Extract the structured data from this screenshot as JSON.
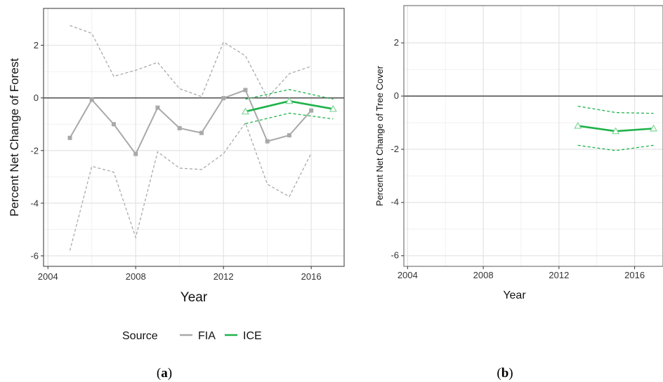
{
  "chart_data": [
    {
      "type": "line",
      "panel": "(a)",
      "xlabel": "Year",
      "ylabel": "Percent Net Change of Forest",
      "xlim": [
        2003.8,
        2017.5
      ],
      "ylim": [
        -6.4,
        3.4
      ],
      "x_ticks": [
        2004,
        2008,
        2012,
        2016
      ],
      "y_ticks": [
        -6,
        -4,
        -2,
        0,
        2
      ],
      "grid": true,
      "reference_line": 0,
      "series": [
        {
          "name": "FIA",
          "color": "#a9a9a9",
          "x": [
            2005,
            2006,
            2007,
            2008,
            2009,
            2010,
            2011,
            2012,
            2013,
            2014,
            2015,
            2016
          ],
          "values": [
            -1.52,
            -0.07,
            -1.0,
            -2.13,
            -0.37,
            -1.15,
            -1.33,
            -0.01,
            0.3,
            -1.65,
            -1.42,
            -0.48
          ],
          "upper": [
            2.75,
            2.45,
            0.82,
            1.05,
            1.35,
            0.35,
            0.05,
            2.12,
            1.6,
            0.0,
            0.92,
            1.2
          ],
          "lower": [
            -5.8,
            -2.6,
            -2.82,
            -5.3,
            -2.05,
            -2.67,
            -2.72,
            -2.12,
            -0.95,
            -3.28,
            -3.75,
            -2.1
          ]
        },
        {
          "name": "ICE",
          "color": "#1fb24a",
          "x": [
            2013,
            2015,
            2017
          ],
          "values": [
            -0.52,
            -0.12,
            -0.42
          ],
          "upper": [
            -0.05,
            0.32,
            -0.05
          ],
          "lower": [
            -0.98,
            -0.58,
            -0.8
          ]
        }
      ]
    },
    {
      "type": "line",
      "panel": "(b)",
      "xlabel": "Year",
      "ylabel": "Percent Net Change of Tree Cover",
      "xlim": [
        2003.8,
        2017.5
      ],
      "ylim": [
        -6.4,
        3.4
      ],
      "x_ticks": [
        2004,
        2008,
        2012,
        2016
      ],
      "y_ticks": [
        -6,
        -4,
        -2,
        0,
        2
      ],
      "grid": true,
      "reference_line": 0,
      "series": [
        {
          "name": "ICE",
          "color": "#1fb24a",
          "x": [
            2013,
            2015,
            2017
          ],
          "values": [
            -1.12,
            -1.32,
            -1.22
          ],
          "upper": [
            -0.38,
            -0.62,
            -0.65
          ],
          "lower": [
            -1.85,
            -2.05,
            -1.85
          ]
        }
      ]
    }
  ],
  "legend": {
    "title": "Source",
    "items": [
      {
        "label": "FIA",
        "color": "#a9a9a9"
      },
      {
        "label": "ICE",
        "color": "#1fb24a"
      }
    ]
  },
  "captions": {
    "a_open": "(",
    "a_letter": "a",
    "a_close": ")",
    "b_open": "(",
    "b_letter": "b",
    "b_close": ")"
  }
}
